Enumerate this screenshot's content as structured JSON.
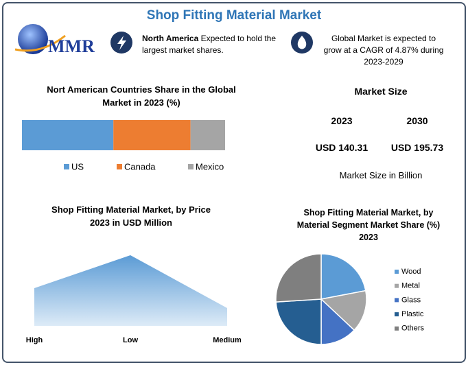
{
  "header": {
    "title": "Shop Fitting Material Market",
    "logo": "MMR"
  },
  "callouts": [
    {
      "bold": "North America",
      "text": "Expected to hold the largest market shares."
    },
    {
      "text": "Global Market is expected to grow at a CAGR of 4.87% during 2023-2029"
    }
  ],
  "market_size": {
    "title": "Market Size",
    "columns": [
      {
        "year": "2023",
        "value": "USD 140.31"
      },
      {
        "year": "2030",
        "value": "USD 195.73"
      }
    ],
    "note": "Market Size in Billion"
  },
  "chart_data": [
    {
      "type": "stacked-bar",
      "title": "Nort American Countries Share in the Global Market in 2023 (%)",
      "series": [
        {
          "name": "US",
          "color": "#5b9bd5",
          "values": [
            45
          ]
        },
        {
          "name": "Canada",
          "color": "#ed7d31",
          "values": [
            38
          ]
        },
        {
          "name": "Mexico",
          "color": "#a5a5a5",
          "values": [
            17
          ]
        }
      ]
    },
    {
      "type": "area",
      "title": "Shop Fitting Material  Market, by Price 2023 in USD Million",
      "categories": [
        "High",
        "Low",
        "Medium"
      ],
      "values": [
        55,
        103,
        26
      ],
      "color": "#5b9bd5"
    },
    {
      "type": "pie",
      "title": "Shop Fitting Material Market, by Material Segment Market Share (%) 2023",
      "categories": [
        "Wood",
        "Metal",
        "Glass",
        "Plastic",
        "Others"
      ],
      "values": [
        22,
        15,
        13,
        24,
        26
      ],
      "colors": [
        "#5b9bd5",
        "#a5a5a5",
        "#4472c4",
        "#255e91",
        "#7f7f7f"
      ]
    }
  ]
}
